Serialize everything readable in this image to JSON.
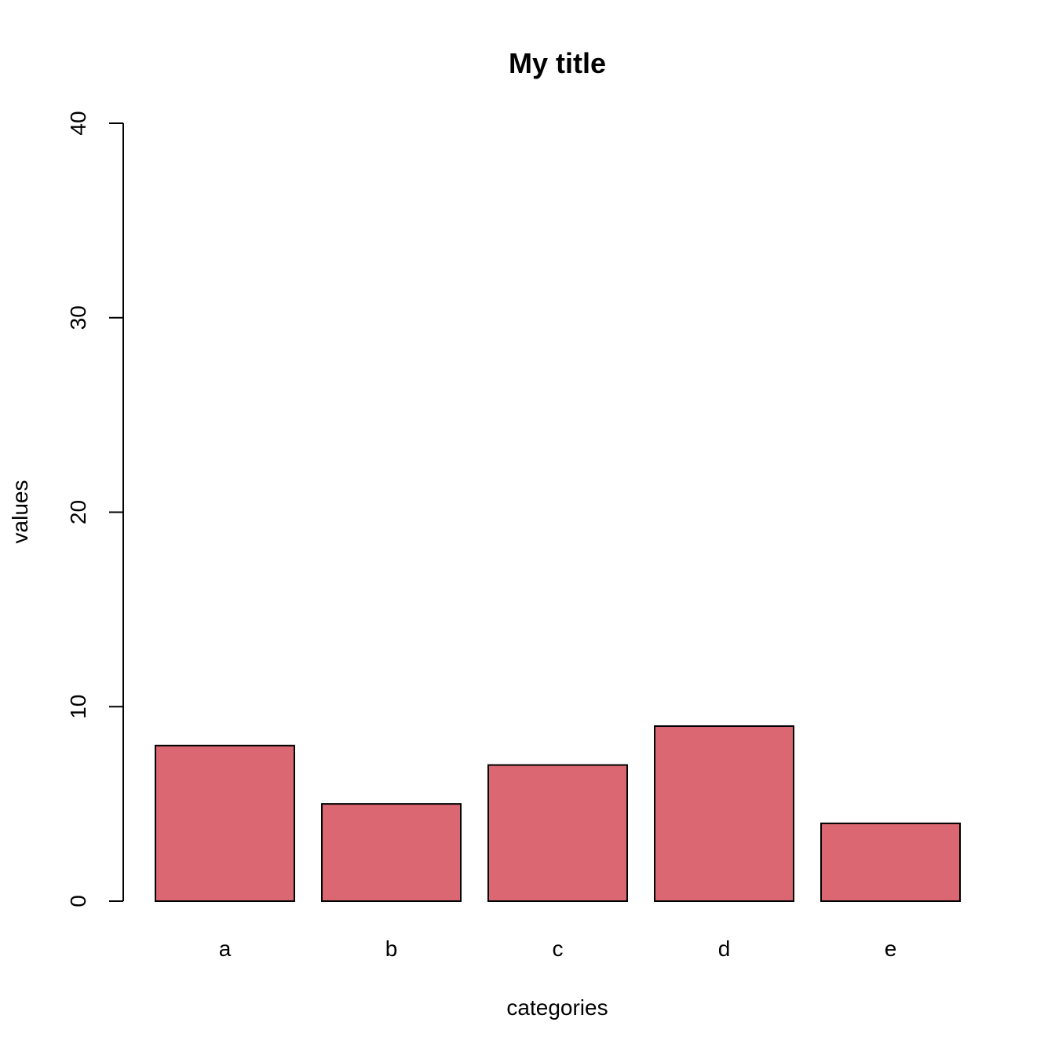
{
  "chart_data": {
    "type": "bar",
    "title": "My title",
    "xlabel": "categories",
    "ylabel": "values",
    "categories": [
      "a",
      "b",
      "c",
      "d",
      "e"
    ],
    "values": [
      8,
      5,
      7,
      9,
      4
    ],
    "ylim": [
      0,
      40
    ],
    "yticks": [
      0,
      10,
      20,
      30,
      40
    ],
    "grid": false,
    "bar_color": "#DA6772"
  }
}
